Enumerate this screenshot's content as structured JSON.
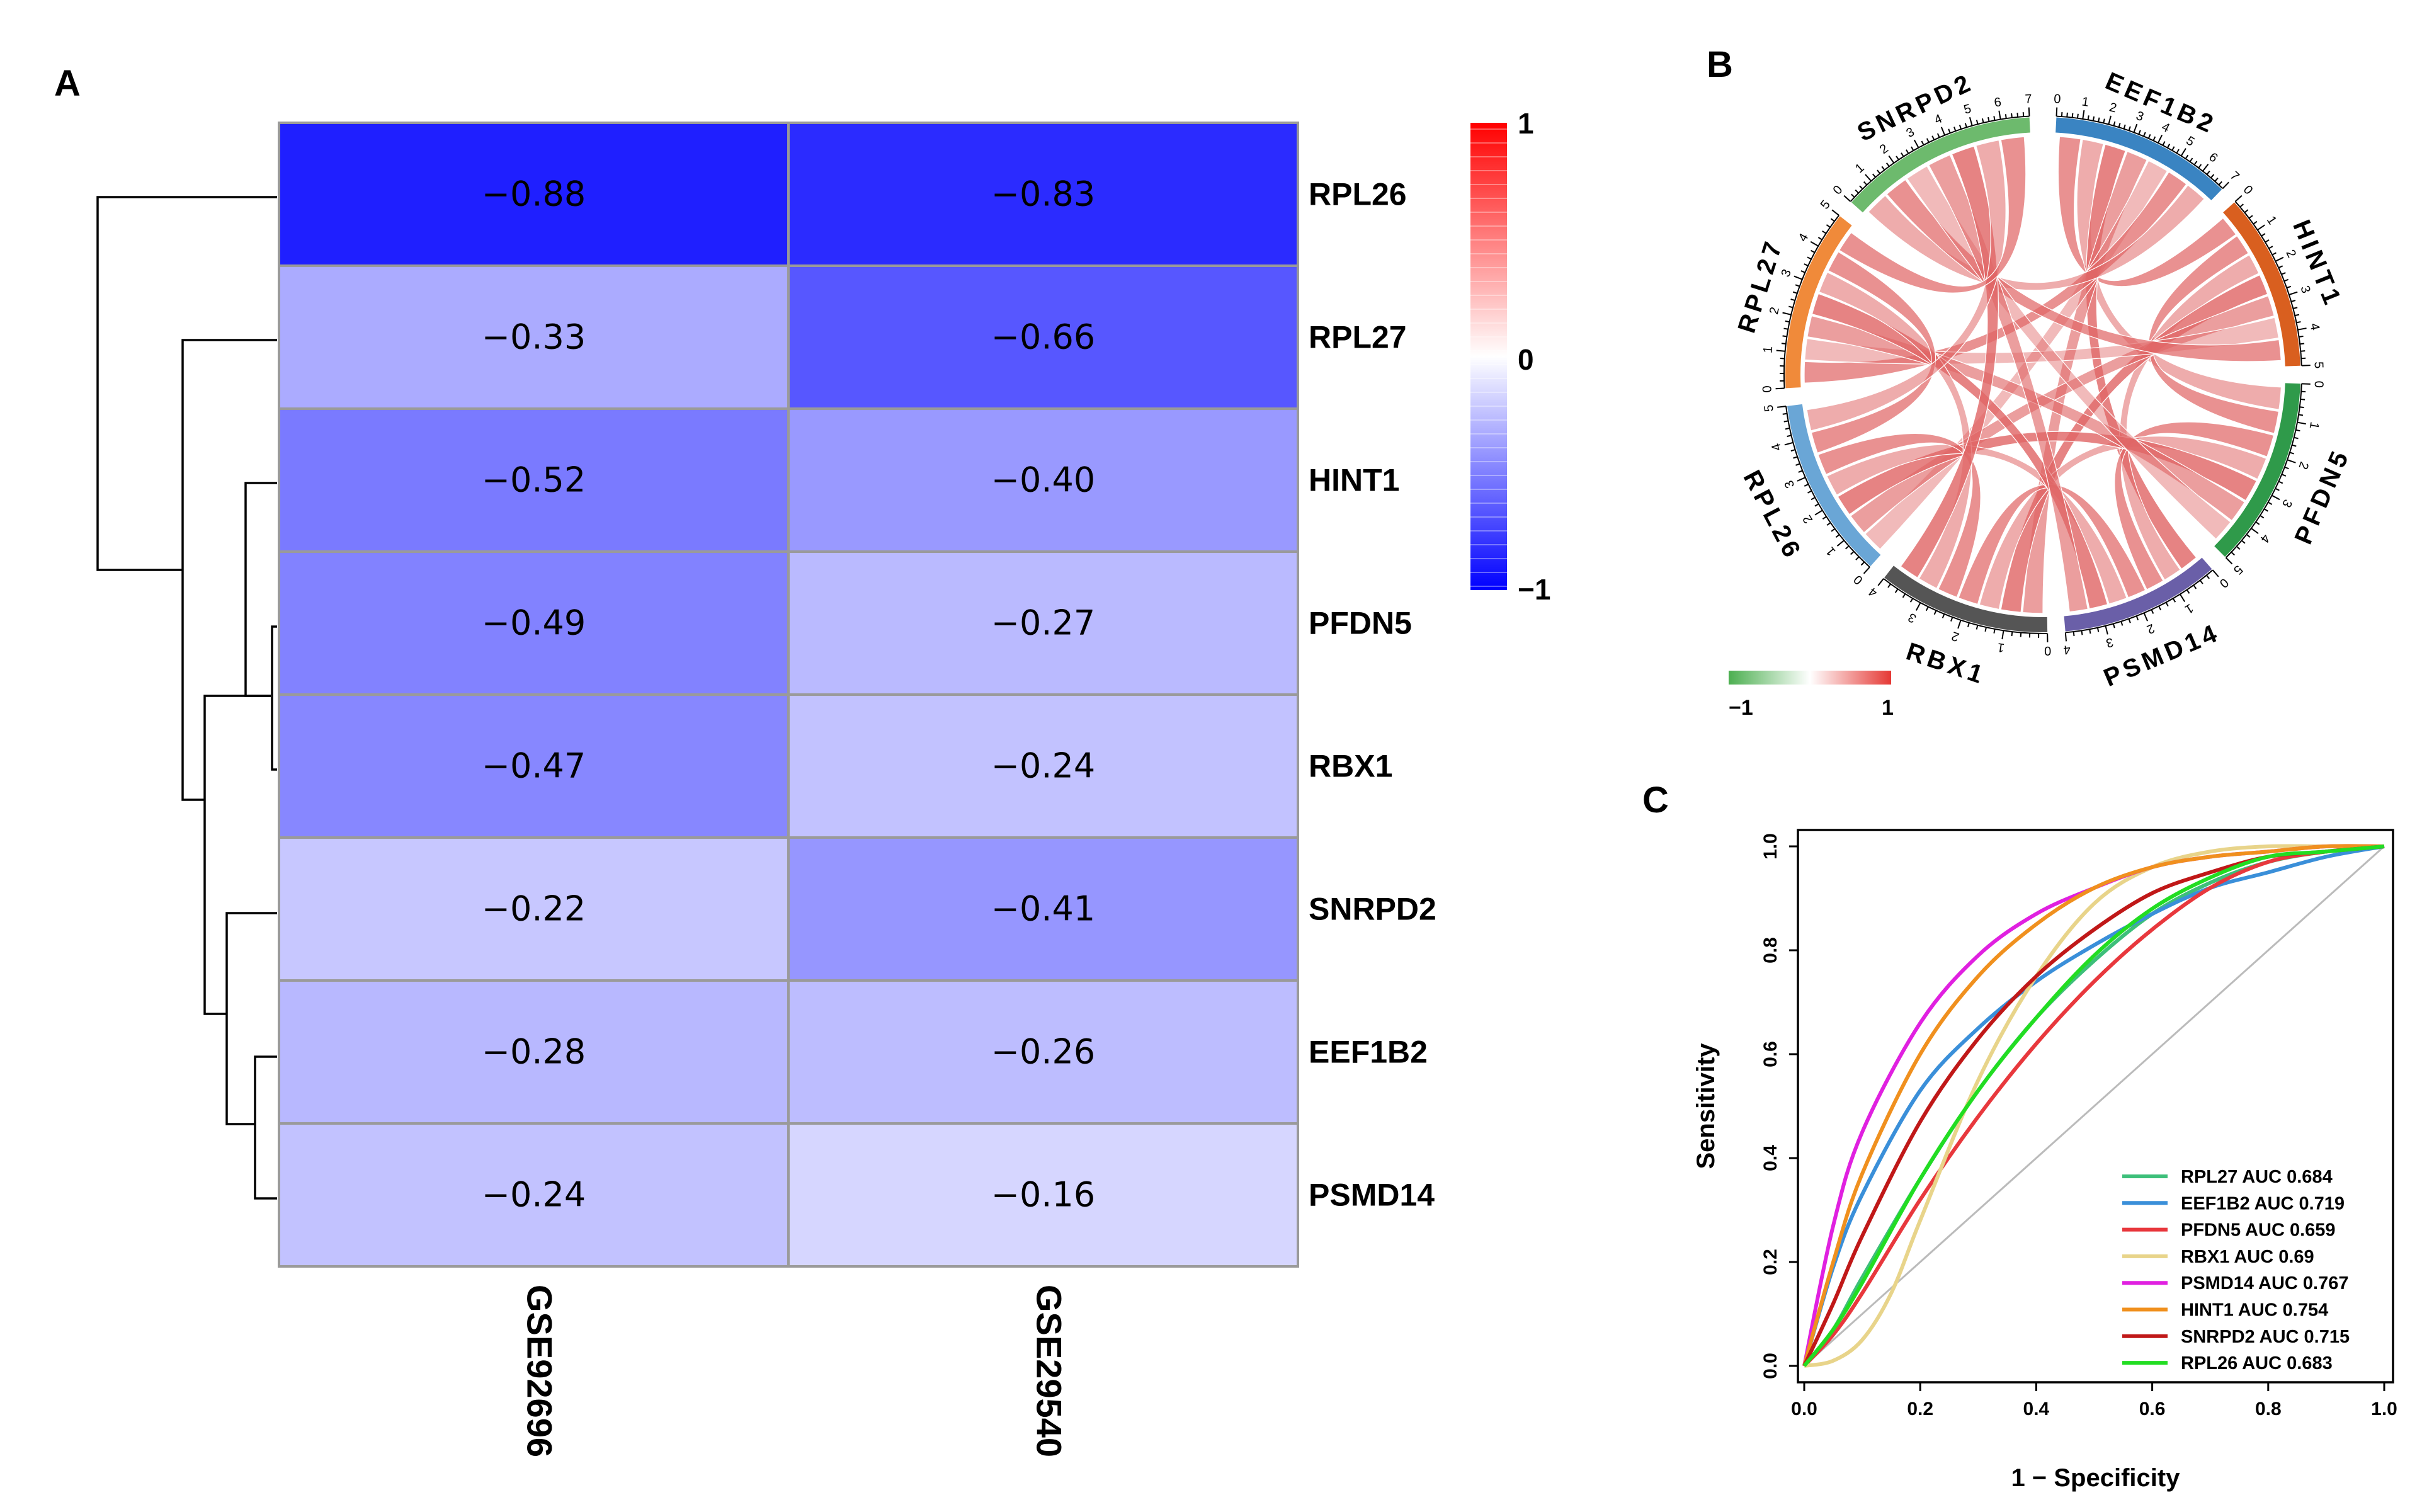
{
  "panels": {
    "a": "A",
    "b": "B",
    "c": "C"
  },
  "chart_data": [
    {
      "type": "heatmap",
      "panel": "A",
      "columns": [
        "GSE92696",
        "GSE29540"
      ],
      "rows": [
        "RPL26",
        "RPL27",
        "HINT1",
        "PFDN5",
        "RBX1",
        "SNRPD2",
        "EEF1B2",
        "PSMD14"
      ],
      "values": [
        [
          -0.88,
          -0.83
        ],
        [
          -0.33,
          -0.66
        ],
        [
          -0.52,
          -0.4
        ],
        [
          -0.49,
          -0.27
        ],
        [
          -0.47,
          -0.24
        ],
        [
          -0.22,
          -0.41
        ],
        [
          -0.28,
          -0.26
        ],
        [
          -0.24,
          -0.16
        ]
      ],
      "value_labels": [
        [
          "−0.88",
          "−0.83"
        ],
        [
          "−0.33",
          "−0.66"
        ],
        [
          "−0.52",
          "−0.40"
        ],
        [
          "−0.49",
          "−0.27"
        ],
        [
          "−0.47",
          "−0.24"
        ],
        [
          "−0.22",
          "−0.41"
        ],
        [
          "−0.28",
          "−0.26"
        ],
        [
          "−0.24",
          "−0.16"
        ]
      ],
      "colorbar": {
        "min": -1,
        "max": 1,
        "ticks": [
          "1",
          "0",
          "−1"
        ],
        "low_color": "#0000ff",
        "mid_color": "#ffffff",
        "high_color": "#ff0000"
      }
    },
    {
      "type": "chord",
      "panel": "B",
      "sectors": [
        {
          "name": "EEF1B2",
          "color": "#3a84c2",
          "ticks": [
            "0",
            "1",
            "2",
            "3",
            "4",
            "5",
            "6",
            "7"
          ]
        },
        {
          "name": "HINT1",
          "color": "#d95f1f",
          "ticks": [
            "0",
            "1",
            "2",
            "3",
            "4",
            "5"
          ]
        },
        {
          "name": "PFDN5",
          "color": "#2f9a4a",
          "ticks": [
            "0",
            "1",
            "2",
            "3",
            "4",
            "5"
          ]
        },
        {
          "name": "PSMD14",
          "color": "#6a5fa8",
          "ticks": [
            "0",
            "1",
            "2",
            "3",
            "4"
          ]
        },
        {
          "name": "RBX1",
          "color": "#555555",
          "ticks": [
            "0",
            "1",
            "2",
            "3",
            "4"
          ]
        },
        {
          "name": "RPL26",
          "color": "#6aa6d6",
          "ticks": [
            "0",
            "1",
            "2",
            "3",
            "4",
            "5"
          ]
        },
        {
          "name": "RPL27",
          "color": "#f08a3a",
          "ticks": [
            "0",
            "1",
            "2",
            "3",
            "4",
            "5"
          ]
        },
        {
          "name": "SNRPD2",
          "color": "#6dba6d",
          "ticks": [
            "0",
            "1",
            "2",
            "3",
            "4",
            "5",
            "6",
            "7"
          ]
        }
      ],
      "legend": {
        "min_label": "−1",
        "max_label": "1",
        "low_color": "#4caf50",
        "mid_color": "#ffffff",
        "high_color": "#e53935"
      },
      "link_color": "#e06666"
    },
    {
      "type": "line",
      "panel": "C",
      "title": "",
      "xlabel": "1 − Specificity",
      "ylabel": "Sensitivity",
      "xlim": [
        0,
        1
      ],
      "ylim": [
        0,
        1
      ],
      "xticks": [
        "0.0",
        "0.2",
        "0.4",
        "0.6",
        "0.8",
        "1.0"
      ],
      "yticks": [
        "0.0",
        "0.2",
        "0.4",
        "0.6",
        "0.8",
        "1.0"
      ],
      "legend_position": "bottom-right",
      "diagonal_color": "#bbbbbb",
      "series": [
        {
          "name": "RPL27 AUC 0.684",
          "color": "#3dbf7a",
          "auc": 0.684,
          "x": [
            0,
            0.05,
            0.1,
            0.2,
            0.3,
            0.4,
            0.5,
            0.6,
            0.7,
            0.8,
            0.9,
            1
          ],
          "y": [
            0,
            0.07,
            0.17,
            0.36,
            0.53,
            0.67,
            0.78,
            0.87,
            0.93,
            0.97,
            0.99,
            1
          ]
        },
        {
          "name": "EEF1B2 AUC 0.719",
          "color": "#3a8fd9",
          "auc": 0.719,
          "x": [
            0,
            0.05,
            0.1,
            0.2,
            0.3,
            0.4,
            0.5,
            0.6,
            0.7,
            0.8,
            0.9,
            1
          ],
          "y": [
            0,
            0.19,
            0.33,
            0.53,
            0.65,
            0.74,
            0.81,
            0.87,
            0.92,
            0.95,
            0.98,
            1
          ]
        },
        {
          "name": "PFDN5 AUC 0.659",
          "color": "#e8383d",
          "auc": 0.659,
          "x": [
            0,
            0.05,
            0.1,
            0.2,
            0.3,
            0.4,
            0.5,
            0.6,
            0.7,
            0.8,
            0.9,
            1
          ],
          "y": [
            0,
            0.06,
            0.14,
            0.32,
            0.48,
            0.62,
            0.74,
            0.84,
            0.92,
            0.97,
            0.99,
            1
          ]
        },
        {
          "name": "RBX1 AUC 0.69",
          "color": "#e8d48a",
          "auc": 0.69,
          "x": [
            0,
            0.05,
            0.1,
            0.15,
            0.2,
            0.3,
            0.4,
            0.5,
            0.6,
            0.7,
            0.8,
            0.9,
            1
          ],
          "y": [
            0,
            0.01,
            0.05,
            0.14,
            0.28,
            0.55,
            0.75,
            0.89,
            0.96,
            0.99,
            1,
            1,
            1
          ]
        },
        {
          "name": "PSMD14 AUC 0.767",
          "color": "#e020e0",
          "auc": 0.767,
          "x": [
            0,
            0.05,
            0.1,
            0.2,
            0.3,
            0.4,
            0.5,
            0.6,
            0.7,
            0.8,
            0.9,
            1
          ],
          "y": [
            0,
            0.27,
            0.45,
            0.66,
            0.79,
            0.87,
            0.92,
            0.96,
            0.98,
            0.99,
            1,
            1
          ]
        },
        {
          "name": "HINT1 AUC 0.754",
          "color": "#f0901e",
          "auc": 0.754,
          "x": [
            0,
            0.05,
            0.1,
            0.2,
            0.3,
            0.4,
            0.5,
            0.6,
            0.7,
            0.8,
            0.9,
            1
          ],
          "y": [
            0,
            0.2,
            0.37,
            0.6,
            0.75,
            0.85,
            0.92,
            0.96,
            0.98,
            0.99,
            1,
            1
          ]
        },
        {
          "name": "SNRPD2 AUC 0.715",
          "color": "#c01818",
          "auc": 0.715,
          "x": [
            0,
            0.05,
            0.1,
            0.2,
            0.3,
            0.4,
            0.5,
            0.6,
            0.7,
            0.8,
            0.9,
            1
          ],
          "y": [
            0,
            0.12,
            0.25,
            0.47,
            0.63,
            0.75,
            0.84,
            0.91,
            0.95,
            0.98,
            0.99,
            1
          ]
        },
        {
          "name": "RPL26 AUC 0.683",
          "color": "#22dd22",
          "auc": 0.683,
          "x": [
            0,
            0.05,
            0.1,
            0.2,
            0.3,
            0.4,
            0.5,
            0.6,
            0.7,
            0.8,
            0.9,
            1
          ],
          "y": [
            0,
            0.07,
            0.16,
            0.36,
            0.53,
            0.67,
            0.79,
            0.88,
            0.94,
            0.98,
            0.99,
            1
          ]
        }
      ]
    }
  ]
}
